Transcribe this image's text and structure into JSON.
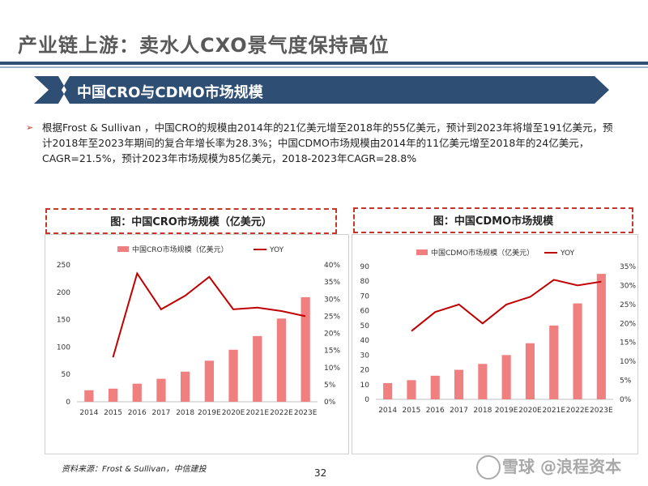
{
  "header": {
    "title": "产业链上游：卖水人CXO景气度保持高位"
  },
  "banner": {
    "text": "中国CRO与CDMO市场规模"
  },
  "body": {
    "paragraph": "根据Frost & Sullivan ，中国CRO的规模由2014年的21亿美元增至2018年的55亿美元，预计到2023年将增至191亿美元，预计2018年至2023年期间的复合年增长率为28.3%；中国CDMO市场规模由2014年的11亿美元增至2018年的24亿美元，CAGR=21.5%，预计2023年市场规模为85亿美元，2018-2023年CAGR=28.8%"
  },
  "footer": {
    "source": "资料来源：Frost & Sullivan，中信建投",
    "page": "32",
    "watermark": "雪球 @浪程资本"
  },
  "colors": {
    "bar": "#f08080",
    "line": "#c00000",
    "title_bar": "#2e4e73",
    "dash": "#c0392b"
  },
  "chart_data": [
    {
      "type": "bar",
      "title": "图：中国CRO市场规模（亿美元）",
      "categories": [
        "2014",
        "2015",
        "2016",
        "2017",
        "2018",
        "2019E",
        "2020E",
        "2021E",
        "2022E",
        "2023E"
      ],
      "series": [
        {
          "name": "中国CRO市场规模（亿美元）",
          "type": "bar",
          "axis": "left",
          "values": [
            21,
            24,
            33,
            42,
            55,
            75,
            95,
            120,
            152,
            191
          ]
        },
        {
          "name": "YOY",
          "type": "line",
          "axis": "right",
          "values": [
            null,
            13,
            37.5,
            27,
            31,
            36.5,
            27,
            27.5,
            26.5,
            25
          ]
        }
      ],
      "y_left": {
        "min": 0,
        "max": 250,
        "ticks": [
          "0",
          "50",
          "100",
          "150",
          "200",
          "250"
        ]
      },
      "y_right": {
        "min": 0,
        "max": 40,
        "ticks": [
          "0%",
          "5%",
          "10%",
          "15%",
          "20%",
          "25%",
          "30%",
          "35%",
          "40%"
        ]
      },
      "legend": "top"
    },
    {
      "type": "bar",
      "title": "图：中国CDMO市场规模",
      "categories": [
        "2014",
        "2015",
        "2016",
        "2017",
        "2018",
        "2019E",
        "2020E",
        "2021E",
        "2022E",
        "2023E"
      ],
      "series": [
        {
          "name": "中国CDMO市场规模（亿美元）",
          "type": "bar",
          "axis": "left",
          "values": [
            11,
            13,
            16,
            20,
            24,
            30,
            38,
            50,
            65,
            85
          ]
        },
        {
          "name": "YOY",
          "type": "line",
          "axis": "right",
          "values": [
            null,
            18,
            23,
            25,
            20,
            25,
            27,
            31.5,
            30,
            31
          ]
        }
      ],
      "y_left": {
        "min": 0,
        "max": 90,
        "ticks": [
          "0",
          "10",
          "20",
          "30",
          "40",
          "50",
          "60",
          "70",
          "80",
          "90"
        ]
      },
      "y_right": {
        "min": 0,
        "max": 35,
        "ticks": [
          "0%",
          "5%",
          "10%",
          "15%",
          "20%",
          "25%",
          "30%",
          "35%"
        ]
      },
      "legend": "top"
    }
  ]
}
